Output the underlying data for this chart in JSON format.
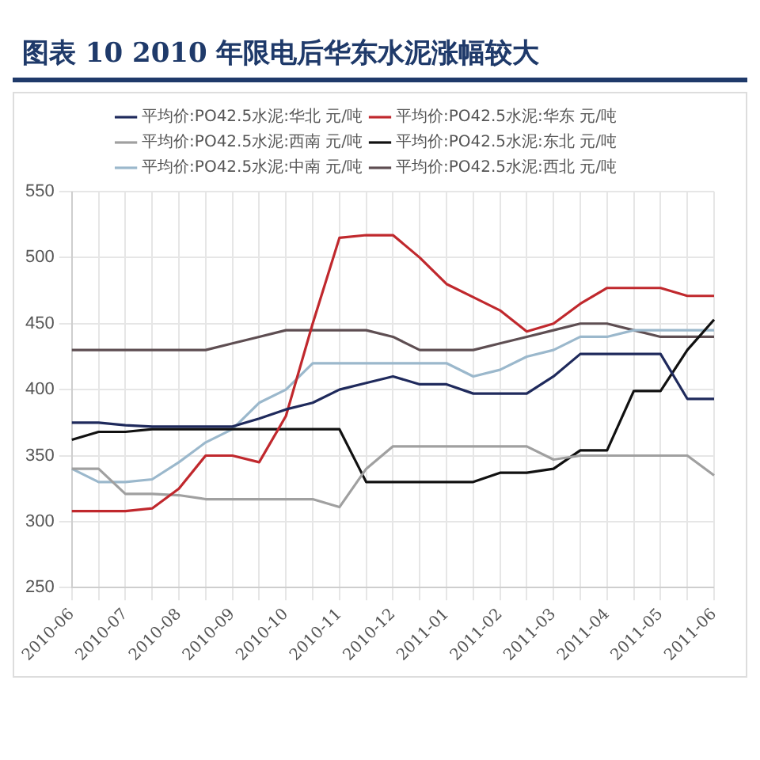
{
  "chart_data": {
    "type": "line",
    "title": "图表 10   2010 年限电后华东水泥涨幅较大",
    "categories": [
      "2010-06",
      null,
      "2010-07",
      null,
      "2010-08",
      null,
      "2010-09",
      null,
      "2010-10",
      null,
      "2010-11",
      null,
      "2010-12",
      null,
      "2011-01",
      null,
      "2011-02",
      null,
      "2011-03",
      null,
      "2011-04",
      null,
      "2011-05",
      null,
      "2011-06"
    ],
    "series": [
      {
        "name": "平均价:PO42.5水泥:华北 元/吨",
        "color": "#1f2a5c",
        "values": [
          375,
          375,
          373,
          372,
          372,
          372,
          372,
          378,
          385,
          390,
          400,
          405,
          410,
          404,
          404,
          397,
          397,
          397,
          410,
          427,
          427,
          427,
          427,
          393,
          393
        ]
      },
      {
        "name": "平均价:PO42.5水泥:华东 元/吨",
        "color": "#c0282d",
        "values": [
          308,
          308,
          308,
          310,
          325,
          350,
          350,
          345,
          380,
          450,
          515,
          517,
          517,
          500,
          480,
          470,
          460,
          444,
          450,
          465,
          477,
          477,
          477,
          471,
          471
        ]
      },
      {
        "name": "平均价:PO42.5水泥:西南 元/吨",
        "color": "#a0a0a0",
        "values": [
          340,
          340,
          321,
          321,
          320,
          317,
          317,
          317,
          317,
          317,
          311,
          340,
          357,
          357,
          357,
          357,
          357,
          357,
          347,
          350,
          350,
          350,
          350,
          350,
          335
        ]
      },
      {
        "name": "平均价:PO42.5水泥:东北 元/吨",
        "color": "#111111",
        "values": [
          362,
          368,
          368,
          370,
          370,
          370,
          370,
          370,
          370,
          370,
          370,
          330,
          330,
          330,
          330,
          330,
          337,
          337,
          340,
          354,
          354,
          399,
          399,
          430,
          453
        ]
      },
      {
        "name": "平均价:PO42.5水泥:中南 元/吨",
        "color": "#9bb8cc",
        "values": [
          340,
          330,
          330,
          332,
          345,
          360,
          370,
          390,
          400,
          420,
          420,
          420,
          420,
          420,
          420,
          410,
          415,
          425,
          430,
          440,
          440,
          445,
          445,
          445,
          445
        ]
      },
      {
        "name": "平均价:PO42.5水泥:西北 元/吨",
        "color": "#5e4e52",
        "values": [
          430,
          430,
          430,
          430,
          430,
          430,
          435,
          440,
          445,
          445,
          445,
          445,
          440,
          430,
          430,
          430,
          435,
          440,
          445,
          450,
          450,
          445,
          440,
          440,
          440
        ]
      }
    ],
    "ylim": [
      250,
      550
    ],
    "yticks": [
      250,
      300,
      350,
      400,
      450,
      500,
      550
    ],
    "grid": true,
    "legend": "top",
    "marker": "none",
    "line_style": "solid"
  }
}
